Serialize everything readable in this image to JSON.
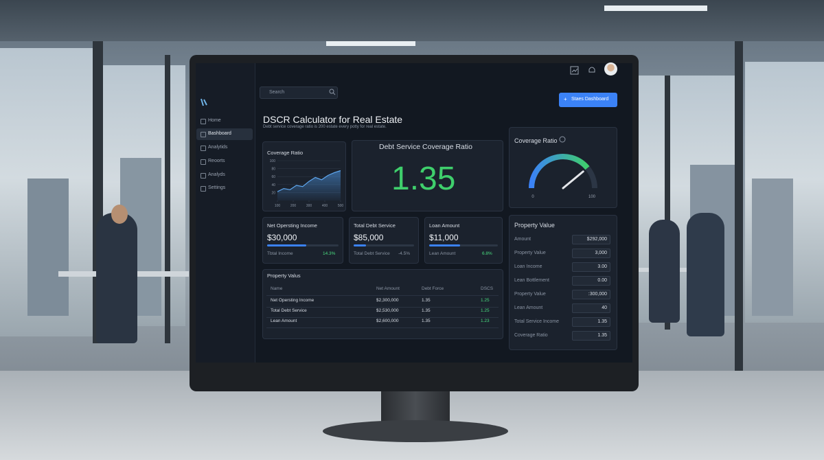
{
  "search_placeholder": "Search",
  "top_button": "Staes Dashboard",
  "sidebar": {
    "items": [
      "Home",
      "Bashboard",
      "Analytids",
      "Reoorts",
      "Analyds",
      "Settings"
    ],
    "active": 1
  },
  "header": {
    "title": "DSCR Calculator for Real Estate",
    "subtitle": "Debt service coverage ratio is 200 estate every potty for real estate."
  },
  "coverage_chart": {
    "title": "Coverage Ratio",
    "x": [
      100,
      140,
      180,
      220,
      260,
      300,
      340,
      380,
      420,
      460,
      500
    ],
    "values": [
      22,
      30,
      27,
      38,
      35,
      48,
      58,
      52,
      63,
      70,
      75
    ],
    "xlim": [
      100,
      500
    ],
    "xticks": [
      100,
      200,
      300,
      400,
      500
    ],
    "ylim": [
      0,
      100
    ],
    "yticks": [
      20,
      40,
      60,
      80,
      100
    ]
  },
  "dscr": {
    "title": "Debt Service Coverage Ratio",
    "value": 1.35
  },
  "gauge": {
    "title": "Coverage Ratio",
    "min": 0,
    "max": 100,
    "value": 78
  },
  "metrics": [
    {
      "title": "Net Opersting Income",
      "value": "$30,000",
      "sub": "Tbtal Income",
      "change": "14.3%"
    },
    {
      "title": "Total Debt Service",
      "value": "$85,000",
      "sub": "Total Debt Service",
      "change": "-4.5%"
    },
    {
      "title": "Loan Amount",
      "value": "$11,000",
      "sub": "Lean Amount",
      "change": "6.8%"
    }
  ],
  "table": {
    "title": "Property Valus",
    "columns": [
      "Name",
      "Net Amount",
      "Debt Force",
      "DSCS"
    ],
    "rows": [
      [
        "Net Opersting Income",
        "$2,300,000",
        "1.35",
        "1.25"
      ],
      [
        "Total Debt Service",
        "$2,530,000",
        "1.35",
        "1.25"
      ],
      [
        "Lean Amount",
        "$2,600,000",
        "1.35",
        "1.23"
      ]
    ]
  },
  "property_panel": {
    "title": "Property Value",
    "rows": [
      [
        "Amount",
        "$292,000"
      ],
      [
        "Property Value",
        "3,000"
      ],
      [
        "Loan Income",
        "3.00"
      ],
      [
        "Lean Bottlement",
        "0.00"
      ],
      [
        "Property Value",
        ":300,000"
      ],
      [
        "Lean Amount",
        "40"
      ],
      [
        "Total Service Income",
        "1.35"
      ],
      [
        "Coverage Ratio",
        "1.35"
      ]
    ]
  }
}
